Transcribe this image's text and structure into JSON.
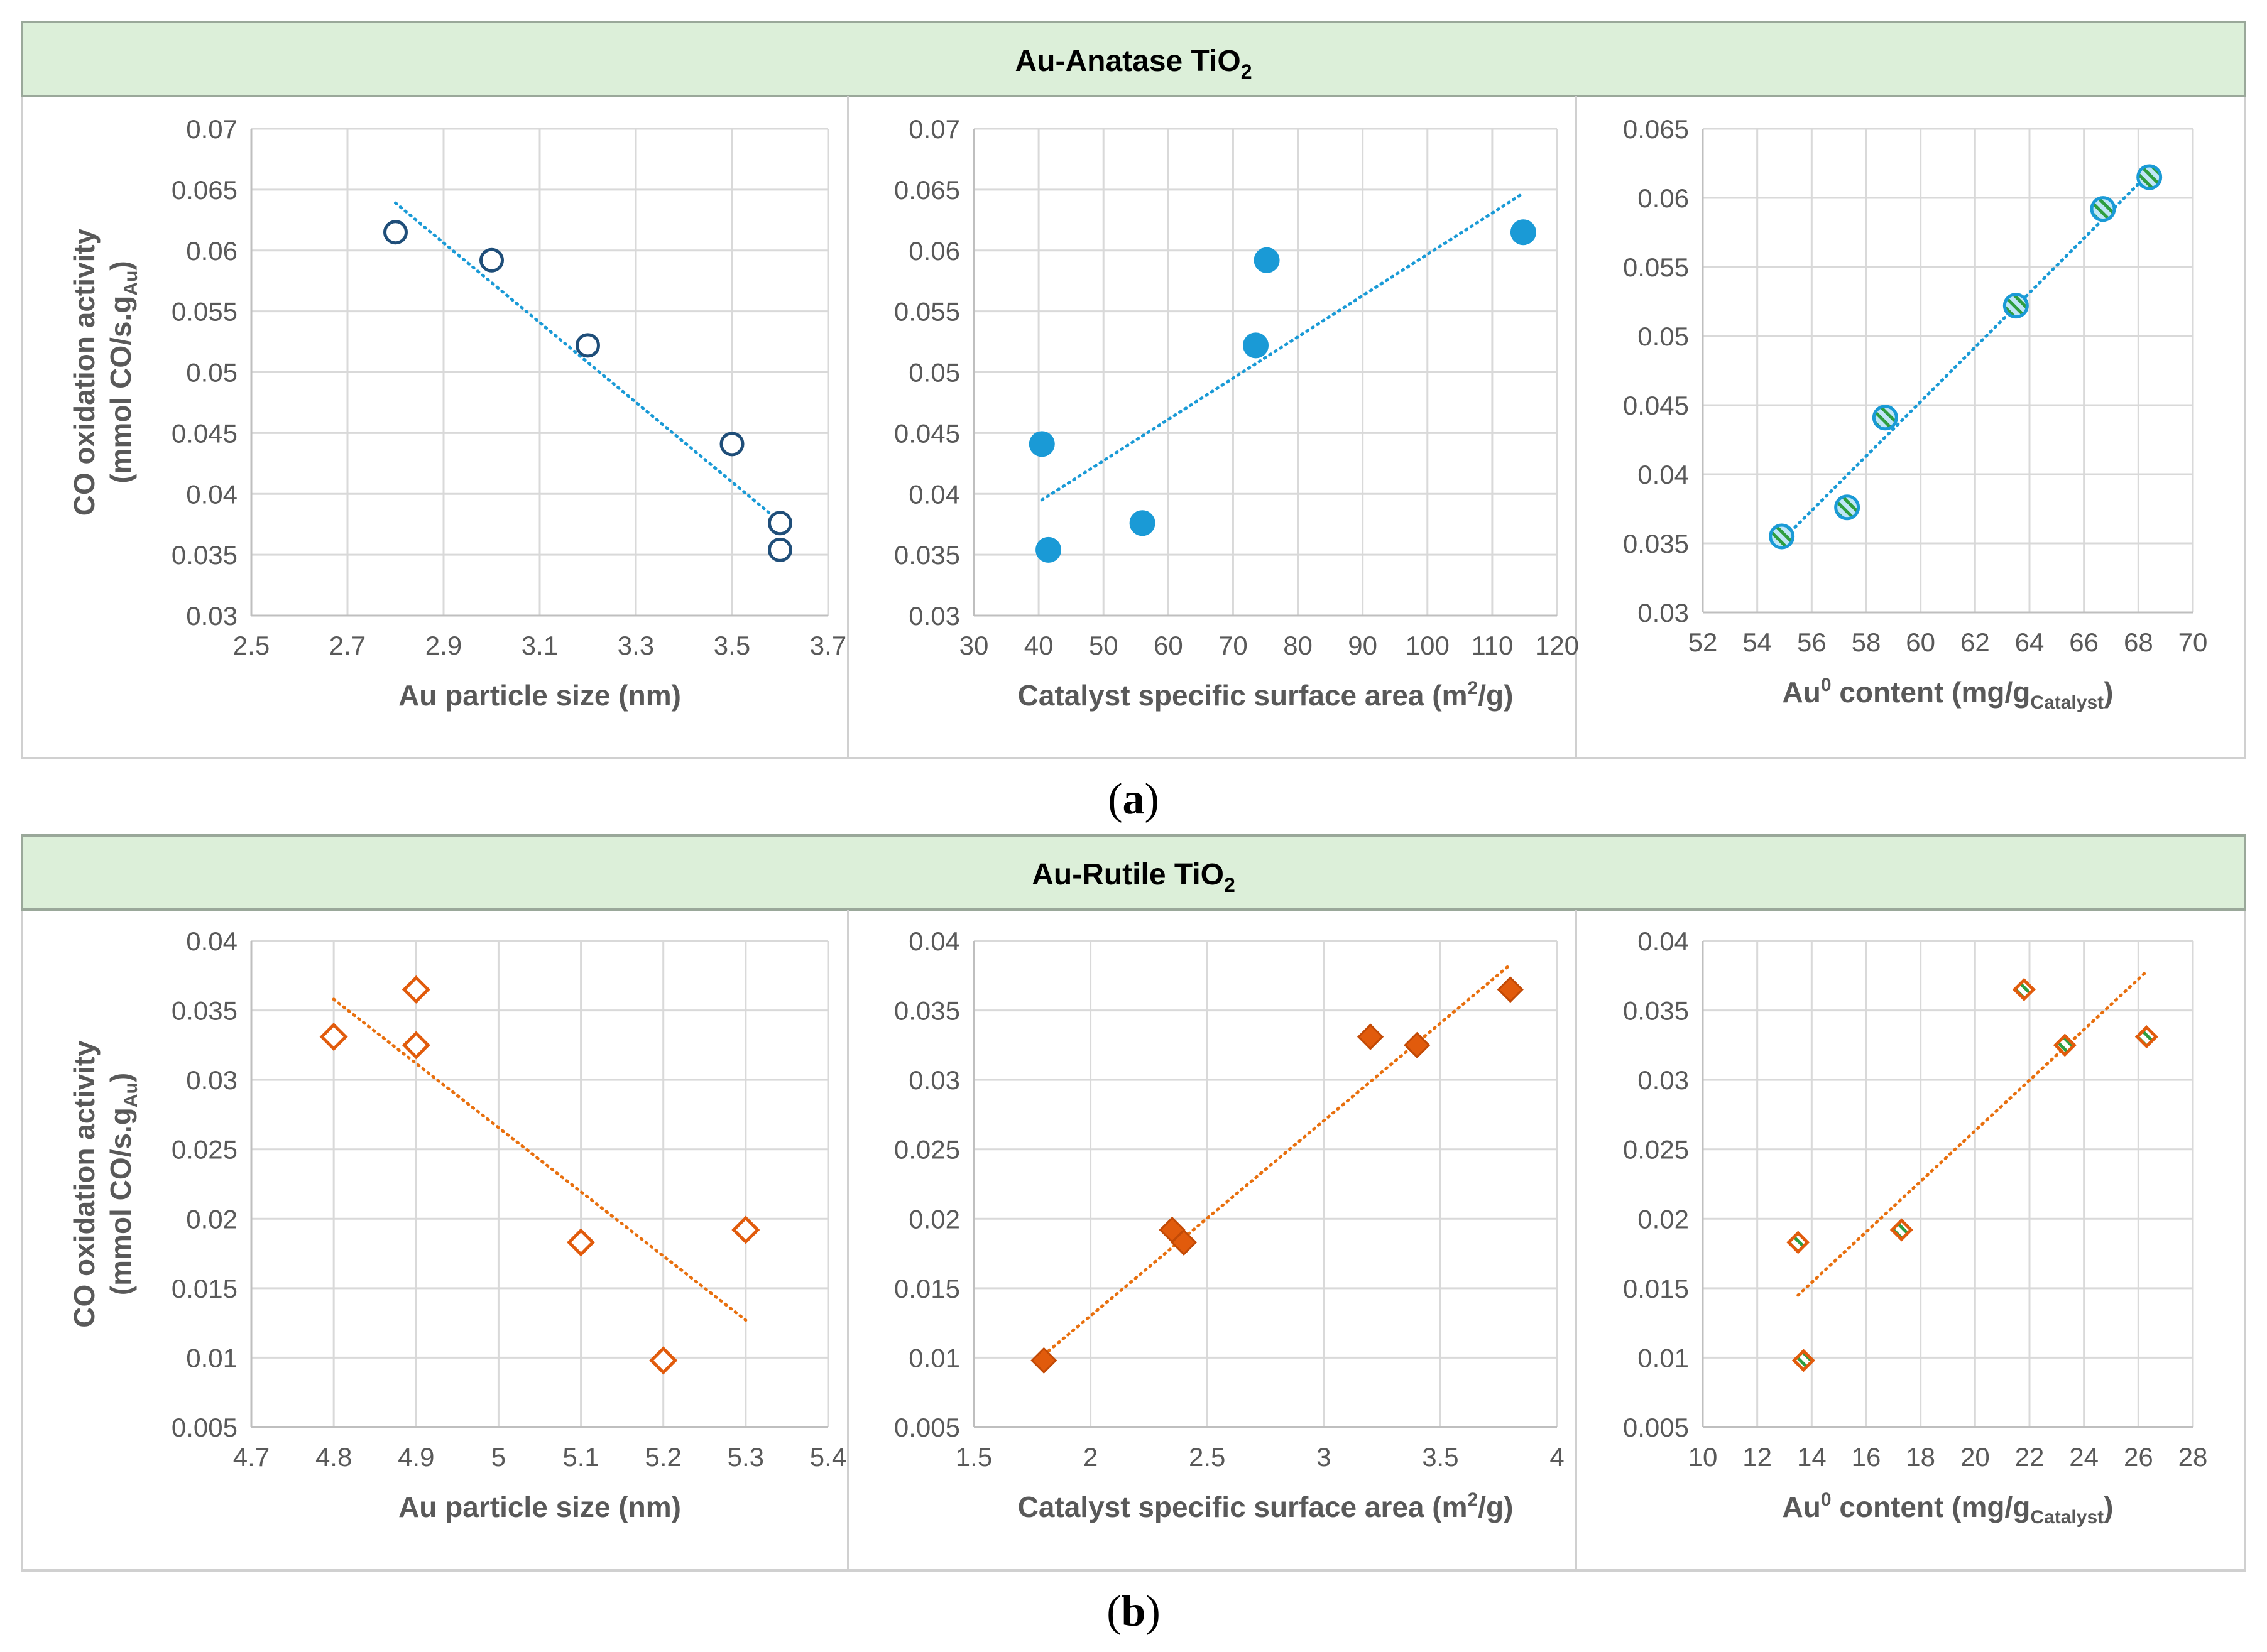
{
  "colors": {
    "header_bg": "#dcefd9",
    "header_border": "#9aa89a",
    "panel_border": "#d0d0d0",
    "grid": "#d9d9d9",
    "axis": "#bfbfbf",
    "tick_text": "#595959",
    "label_text": "#595959",
    "anatase_edge": "#1f4e79",
    "anatase_fill": "#1a9ad6",
    "anatase_trend": "#1a9ad6",
    "rutile": "#e15b0c",
    "rutile_trend": "#e8700f",
    "green_stripe": "#2e9e3f"
  },
  "sections": [
    {
      "title_main": "Au-Anatase TiO",
      "title_sub": "2",
      "caption_open": "(",
      "caption_letter": "a",
      "caption_close": ")",
      "ylabel_line1": "CO oxidation activity",
      "ylabel_line2_main": "(mmol CO/s.g",
      "ylabel_line2_sub": "Au",
      "ylabel_line2_close": ")"
    },
    {
      "title_main": "Au-Rutile TiO",
      "title_sub": "2",
      "caption_open": "(",
      "caption_letter": "b",
      "caption_close": ")",
      "ylabel_line1": "CO oxidation activity",
      "ylabel_line2_main": "(mmol CO/s.g",
      "ylabel_line2_sub": "Au",
      "ylabel_line2_close": ")"
    }
  ],
  "chart_data": [
    {
      "id": "anatase-particle-size",
      "type": "scatter",
      "marker": "circle-open",
      "xlabel_parts": [
        {
          "t": "Au particle size (nm)"
        }
      ],
      "xlim": [
        2.5,
        3.7
      ],
      "xticks": [
        "2.5",
        "2.7",
        "2.9",
        "3.1",
        "3.3",
        "3.5",
        "3.7"
      ],
      "ylim": [
        0.03,
        0.07
      ],
      "yticks": [
        "0.03",
        "0.035",
        "0.04",
        "0.045",
        "0.05",
        "0.055",
        "0.06",
        "0.065",
        "0.07"
      ],
      "x": [
        2.8,
        3.0,
        3.2,
        3.5,
        3.6,
        3.6
      ],
      "y": [
        0.0615,
        0.0592,
        0.0522,
        0.0441,
        0.0376,
        0.0354
      ],
      "trendline": {
        "x": [
          2.8,
          3.6
        ],
        "y": [
          0.0639,
          0.0377
        ]
      }
    },
    {
      "id": "anatase-surface-area",
      "type": "scatter",
      "marker": "circle-filled",
      "xlabel_parts": [
        {
          "t": "Catalyst specific surface area (m"
        },
        {
          "t": "2",
          "sup": true
        },
        {
          "t": "/g)"
        }
      ],
      "xlim": [
        30,
        120
      ],
      "xticks": [
        "30",
        "40",
        "50",
        "60",
        "70",
        "80",
        "90",
        "100",
        "110",
        "120"
      ],
      "ylim": [
        0.03,
        0.07
      ],
      "yticks": [
        "0.03",
        "0.035",
        "0.04",
        "0.045",
        "0.05",
        "0.055",
        "0.06",
        "0.065",
        "0.07"
      ],
      "x": [
        40.5,
        41.5,
        56,
        73.5,
        75.2,
        114.8
      ],
      "y": [
        0.0441,
        0.0354,
        0.0376,
        0.0522,
        0.0592,
        0.0615
      ],
      "trendline": {
        "x": [
          40.5,
          114.8
        ],
        "y": [
          0.0395,
          0.0647
        ]
      }
    },
    {
      "id": "anatase-au0-content",
      "type": "scatter",
      "marker": "circle-striped",
      "xlabel_parts": [
        {
          "t": "Au"
        },
        {
          "t": "0",
          "sup": true
        },
        {
          "t": " content (mg/g"
        },
        {
          "t": "Catalyst",
          "sub": true
        },
        {
          "t": ")"
        }
      ],
      "xlim": [
        52,
        70
      ],
      "xticks": [
        "52",
        "54",
        "56",
        "58",
        "60",
        "62",
        "64",
        "66",
        "68",
        "70"
      ],
      "ylim": [
        0.03,
        0.065
      ],
      "yticks": [
        "0.03",
        "0.035",
        "0.04",
        "0.045",
        "0.05",
        "0.055",
        "0.06",
        "0.065"
      ],
      "x": [
        54.9,
        57.3,
        58.7,
        63.5,
        66.7,
        68.4
      ],
      "y": [
        0.0355,
        0.0376,
        0.0441,
        0.0522,
        0.0592,
        0.0615
      ],
      "trendline": {
        "x": [
          54.9,
          68.4
        ],
        "y": [
          0.0352,
          0.0618
        ]
      }
    },
    {
      "id": "rutile-particle-size",
      "type": "scatter",
      "marker": "diamond-open",
      "xlabel_parts": [
        {
          "t": "Au particle size (nm)"
        }
      ],
      "xlim": [
        4.7,
        5.4
      ],
      "xticks": [
        "4.7",
        "4.8",
        "4.9",
        "5",
        "5.1",
        "5.2",
        "5.3",
        "5.4"
      ],
      "ylim": [
        0.005,
        0.04
      ],
      "yticks": [
        "0.005",
        "0.01",
        "0.015",
        "0.02",
        "0.025",
        "0.03",
        "0.035",
        "0.04"
      ],
      "x": [
        4.8,
        4.9,
        4.9,
        5.1,
        5.2,
        5.3
      ],
      "y": [
        0.0331,
        0.0365,
        0.0325,
        0.0183,
        0.0098,
        0.0192
      ],
      "trendline": {
        "x": [
          4.8,
          5.3
        ],
        "y": [
          0.0358,
          0.0127
        ]
      }
    },
    {
      "id": "rutile-surface-area",
      "type": "scatter",
      "marker": "diamond-filled",
      "xlabel_parts": [
        {
          "t": "Catalyst specific surface area (m"
        },
        {
          "t": "2",
          "sup": true
        },
        {
          "t": "/g)"
        }
      ],
      "xlim": [
        1.5,
        4
      ],
      "xticks": [
        "1.5",
        "2",
        "2.5",
        "3",
        "3.5",
        "4"
      ],
      "ylim": [
        0.005,
        0.04
      ],
      "yticks": [
        "0.005",
        "0.01",
        "0.015",
        "0.02",
        "0.025",
        "0.03",
        "0.035",
        "0.04"
      ],
      "x": [
        1.8,
        2.35,
        2.4,
        3.2,
        3.4,
        3.8
      ],
      "y": [
        0.0098,
        0.0192,
        0.0183,
        0.0331,
        0.0325,
        0.0365
      ],
      "trendline": {
        "x": [
          1.8,
          3.8
        ],
        "y": [
          0.0102,
          0.0383
        ]
      }
    },
    {
      "id": "rutile-au0-content",
      "type": "scatter",
      "marker": "diamond-striped",
      "xlabel_parts": [
        {
          "t": "Au"
        },
        {
          "t": "0",
          "sup": true
        },
        {
          "t": " content (mg/g"
        },
        {
          "t": "Catalyst",
          "sub": true
        },
        {
          "t": ")"
        }
      ],
      "xlim": [
        10,
        28
      ],
      "xticks": [
        "10",
        "12",
        "14",
        "16",
        "18",
        "20",
        "22",
        "24",
        "26",
        "28"
      ],
      "ylim": [
        0.005,
        0.04
      ],
      "yticks": [
        "0.005",
        "0.01",
        "0.015",
        "0.02",
        "0.025",
        "0.03",
        "0.035",
        "0.04"
      ],
      "x": [
        13.5,
        13.7,
        17.3,
        21.8,
        23.3,
        26.3
      ],
      "y": [
        0.0183,
        0.0098,
        0.0192,
        0.0365,
        0.0325,
        0.0331
      ],
      "trendline": {
        "x": [
          13.5,
          26.3
        ],
        "y": [
          0.0145,
          0.0378
        ]
      }
    }
  ]
}
